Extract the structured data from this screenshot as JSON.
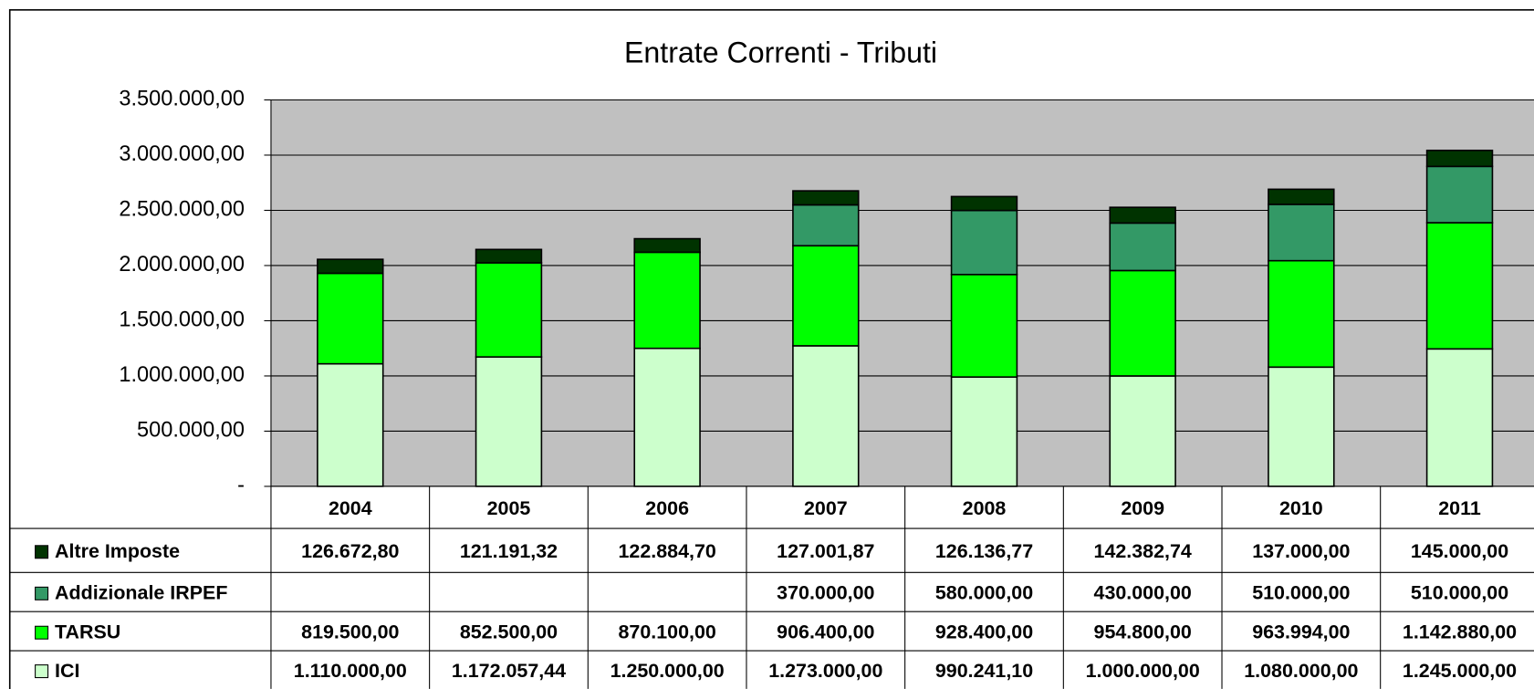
{
  "chart_data": {
    "type": "bar",
    "stacked": true,
    "title": "Entrate Correnti - Tributi",
    "categories": [
      "2004",
      "2005",
      "2006",
      "2007",
      "2008",
      "2009",
      "2010",
      "2011"
    ],
    "series": [
      {
        "name": "Altre Imposte",
        "color": "#003300",
        "values": [
          126672.8,
          121191.32,
          122884.7,
          127001.87,
          126136.77,
          142382.74,
          137000.0,
          145000.0
        ],
        "value_labels": [
          "126.672,80",
          "121.191,32",
          "122.884,70",
          "127.001,87",
          "126.136,77",
          "142.382,74",
          "137.000,00",
          "145.000,00"
        ]
      },
      {
        "name": "Addizionale IRPEF",
        "color": "#339966",
        "values": [
          null,
          null,
          null,
          370000.0,
          580000.0,
          430000.0,
          510000.0,
          510000.0
        ],
        "value_labels": [
          null,
          null,
          null,
          "370.000,00",
          "580.000,00",
          "430.000,00",
          "510.000,00",
          "510.000,00"
        ]
      },
      {
        "name": "TARSU",
        "color": "#00ff00",
        "values": [
          819500.0,
          852500.0,
          870100.0,
          906400.0,
          928400.0,
          954800.0,
          963994.0,
          1142880.0
        ],
        "value_labels": [
          "819.500,00",
          "852.500,00",
          "870.100,00",
          "906.400,00",
          "928.400,00",
          "954.800,00",
          "963.994,00",
          "1.142.880,00"
        ]
      },
      {
        "name": "ICI",
        "color": "#ccffcc",
        "values": [
          1110000.0,
          1172057.44,
          1250000.0,
          1273000.0,
          990241.1,
          1000000.0,
          1080000.0,
          1245000.0
        ],
        "value_labels": [
          "1.110.000,00",
          "1.172.057,44",
          "1.250.000,00",
          "1.273.000,00",
          "990.241,10",
          "1.000.000,00",
          "1.080.000,00",
          "1.245.000,00"
        ]
      }
    ],
    "ylim": [
      0,
      3500000
    ],
    "yticks": [
      {
        "value": 0,
        "label": "-"
      },
      {
        "value": 500000,
        "label": "500.000,00"
      },
      {
        "value": 1000000,
        "label": "1.000.000,00"
      },
      {
        "value": 1500000,
        "label": "1.500.000,00"
      },
      {
        "value": 2000000,
        "label": "2.000.000,00"
      },
      {
        "value": 2500000,
        "label": "2.500.000,00"
      },
      {
        "value": 3000000,
        "label": "3.000.000,00"
      },
      {
        "value": 3500000,
        "label": "3.500.000,00"
      }
    ],
    "grid": true,
    "plot_background": "#c0c0c0"
  }
}
